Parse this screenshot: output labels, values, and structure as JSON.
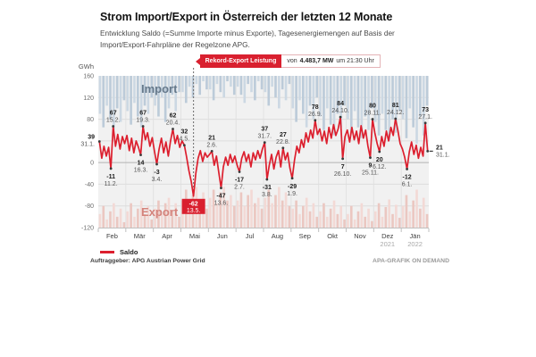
{
  "header": {
    "title": "Strom Import/Export in Österreich der letzten 12 Monate",
    "subtitle": "Entwicklung Saldo (=Summe Importe minus Exporte), Tagesenergiemengen auf Basis der Import/Export-Fahrpläne der Regelzone APG."
  },
  "record_banner": {
    "label": "Rekord-Export Leistung",
    "prefix": "von",
    "power": "4.483,7 MW",
    "suffix": "um 21:30 Uhr"
  },
  "legend": {
    "items": [
      {
        "label": "Saldo",
        "color": "#dc1f2e"
      }
    ]
  },
  "footer": {
    "left": "Auftraggeber: APG Austrian Power Grid",
    "right": "APA-GRAFIK ON DEMAND"
  },
  "chart_data": {
    "type": "line",
    "unit": "GWh",
    "ylim": [
      -120,
      160
    ],
    "yticks": [
      160,
      120,
      80,
      0,
      -40,
      -80,
      -120
    ],
    "gridlines": [
      120,
      80,
      40,
      0,
      -40,
      -80
    ],
    "months": [
      "Feb",
      "Mär",
      "Apr",
      "Mai",
      "Jun",
      "Jul",
      "Aug",
      "Sep",
      "Okt",
      "Nov",
      "Dez",
      "Jän"
    ],
    "year_labels": [
      {
        "month_index": 10,
        "label": "2021"
      },
      {
        "month_index": 11,
        "label": "2022"
      }
    ],
    "region_labels": {
      "import": "Import",
      "export": "Export"
    },
    "colors": {
      "saldo": "#dc1f2e",
      "record_box": "#d9202f",
      "import_bar_a": "#ccd8e3",
      "import_bar_b": "#bccbd9",
      "export_bar_a": "#f3d9d5",
      "export_bar_b": "#ebc7c1",
      "panel": "#f1f1f1",
      "grid": "#dedede",
      "zero_line": "#b3b3b3",
      "import_label": "#66798b",
      "export_label": "#d4837c"
    },
    "saldo": [
      39,
      8,
      30,
      12,
      28,
      -11,
      67,
      30,
      52,
      25,
      48,
      35,
      50,
      22,
      45,
      18,
      40,
      28,
      14,
      67,
      42,
      55,
      30,
      46,
      20,
      -3,
      25,
      45,
      18,
      38,
      12,
      40,
      62,
      35,
      50,
      28,
      40,
      32,
      10,
      -15,
      -35,
      -62,
      -20,
      8,
      22,
      2,
      18,
      10,
      15,
      21,
      -5,
      12,
      -18,
      -47,
      -8,
      10,
      -5,
      15,
      0,
      12,
      -5,
      -17,
      8,
      20,
      2,
      15,
      -8,
      18,
      5,
      22,
      8,
      25,
      37,
      -31,
      -5,
      15,
      -12,
      10,
      22,
      -8,
      27,
      5,
      18,
      -10,
      -29,
      5,
      30,
      18,
      42,
      28,
      55,
      38,
      60,
      45,
      78,
      52,
      62,
      40,
      58,
      35,
      65,
      45,
      70,
      50,
      62,
      84,
      7,
      48,
      60,
      38,
      65,
      42,
      58,
      35,
      68,
      45,
      60,
      30,
      9,
      80,
      55,
      35,
      20,
      48,
      30,
      58,
      40,
      65,
      50,
      81,
      60,
      35,
      25,
      10,
      -12,
      20,
      38,
      15,
      32,
      8,
      28,
      12,
      73,
      21
    ],
    "import_bars": [
      70,
      95,
      55,
      80,
      100,
      60,
      85,
      45,
      65,
      90,
      50,
      75,
      95,
      55,
      70,
      40,
      55,
      75,
      40,
      85,
      60,
      35,
      65,
      30,
      30,
      50,
      20,
      40,
      15,
      35,
      10,
      25,
      25,
      45,
      15,
      30,
      40,
      10,
      20,
      35,
      20,
      35,
      50,
      15,
      30,
      45,
      10,
      25,
      30,
      55,
      20,
      40,
      60,
      25,
      45,
      15,
      60,
      85,
      45,
      70,
      95,
      55,
      80,
      40,
      75,
      100,
      60,
      90,
      110,
      70,
      95,
      55,
      80,
      105,
      65,
      95,
      115,
      75,
      100,
      60,
      85,
      110,
      70,
      100,
      120,
      80,
      105,
      65,
      80,
      115,
      60,
      95,
      125,
      75,
      110,
      55
    ],
    "export_bars": [
      25,
      40,
      15,
      30,
      45,
      20,
      35,
      10,
      30,
      45,
      20,
      35,
      50,
      25,
      40,
      15,
      35,
      50,
      25,
      45,
      55,
      30,
      45,
      20,
      50,
      70,
      40,
      60,
      75,
      45,
      65,
      35,
      55,
      70,
      45,
      65,
      75,
      50,
      60,
      40,
      50,
      65,
      40,
      60,
      70,
      45,
      55,
      35,
      55,
      70,
      45,
      60,
      75,
      50,
      65,
      40,
      35,
      50,
      25,
      40,
      55,
      30,
      45,
      20,
      30,
      45,
      20,
      35,
      50,
      25,
      40,
      15,
      25,
      40,
      15,
      30,
      45,
      20,
      35,
      12,
      30,
      45,
      20,
      38,
      52,
      25,
      42,
      18,
      40,
      60,
      30,
      50,
      70,
      35,
      55,
      25
    ],
    "annotations": [
      {
        "i": 0,
        "value": "39",
        "date": "31.1.",
        "y": 39,
        "pos": "left"
      },
      {
        "i": 5,
        "value": "-11",
        "date": "11.2.",
        "y": -11,
        "pos": "below"
      },
      {
        "i": 6,
        "value": "67",
        "date": "15.2.",
        "y": 67,
        "pos": "above"
      },
      {
        "i": 18,
        "value": "14",
        "date": "16.3.",
        "y": 14,
        "pos": "below"
      },
      {
        "i": 19,
        "value": "67",
        "date": "19.3.",
        "y": 67,
        "pos": "above"
      },
      {
        "i": 25,
        "value": "-3",
        "date": "3.4.",
        "y": -3,
        "pos": "below"
      },
      {
        "i": 32,
        "value": "62",
        "date": "20.4.",
        "y": 62,
        "pos": "above"
      },
      {
        "i": 37,
        "value": "32",
        "date": "4.5.",
        "y": 32,
        "pos": "above"
      },
      {
        "i": 49,
        "value": "21",
        "date": "2.6.",
        "y": 21,
        "pos": "above"
      },
      {
        "i": 53,
        "value": "-47",
        "date": "13.6.",
        "y": -47,
        "pos": "below"
      },
      {
        "i": 61,
        "value": "-17",
        "date": "2.7.",
        "y": -17,
        "pos": "below"
      },
      {
        "i": 72,
        "value": "37",
        "date": "31.7.",
        "y": 37,
        "pos": "above"
      },
      {
        "i": 73,
        "value": "-31",
        "date": "3.8.",
        "y": -31,
        "pos": "below"
      },
      {
        "i": 80,
        "value": "27",
        "date": "22.8.",
        "y": 27,
        "pos": "above"
      },
      {
        "i": 84,
        "value": "-29",
        "date": "1.9.",
        "y": -29,
        "pos": "below"
      },
      {
        "i": 94,
        "value": "78",
        "date": "26.9.",
        "y": 78,
        "pos": "above"
      },
      {
        "i": 105,
        "value": "84",
        "date": "24.10.",
        "y": 84,
        "pos": "above"
      },
      {
        "i": 106,
        "value": "7",
        "date": "26.10.",
        "y": 7,
        "pos": "below"
      },
      {
        "i": 118,
        "value": "9",
        "date": "25.11.",
        "y": 9,
        "pos": "below"
      },
      {
        "i": 119,
        "value": "80",
        "date": "28.11.",
        "y": 80,
        "pos": "above"
      },
      {
        "i": 122,
        "value": "20",
        "date": "6.12.",
        "y": 20,
        "pos": "below"
      },
      {
        "i": 129,
        "value": "81",
        "date": "24.12.",
        "y": 81,
        "pos": "above"
      },
      {
        "i": 134,
        "value": "-12",
        "date": "6.1.",
        "y": -12,
        "pos": "below"
      },
      {
        "i": 142,
        "value": "73",
        "date": "27.1.",
        "y": 73,
        "pos": "above"
      },
      {
        "i": 143,
        "value": "21",
        "date": "31.1.",
        "y": 21,
        "pos": "right"
      }
    ],
    "record": {
      "i": 41,
      "value": "-62",
      "date": "13.5.",
      "y": -62
    }
  }
}
